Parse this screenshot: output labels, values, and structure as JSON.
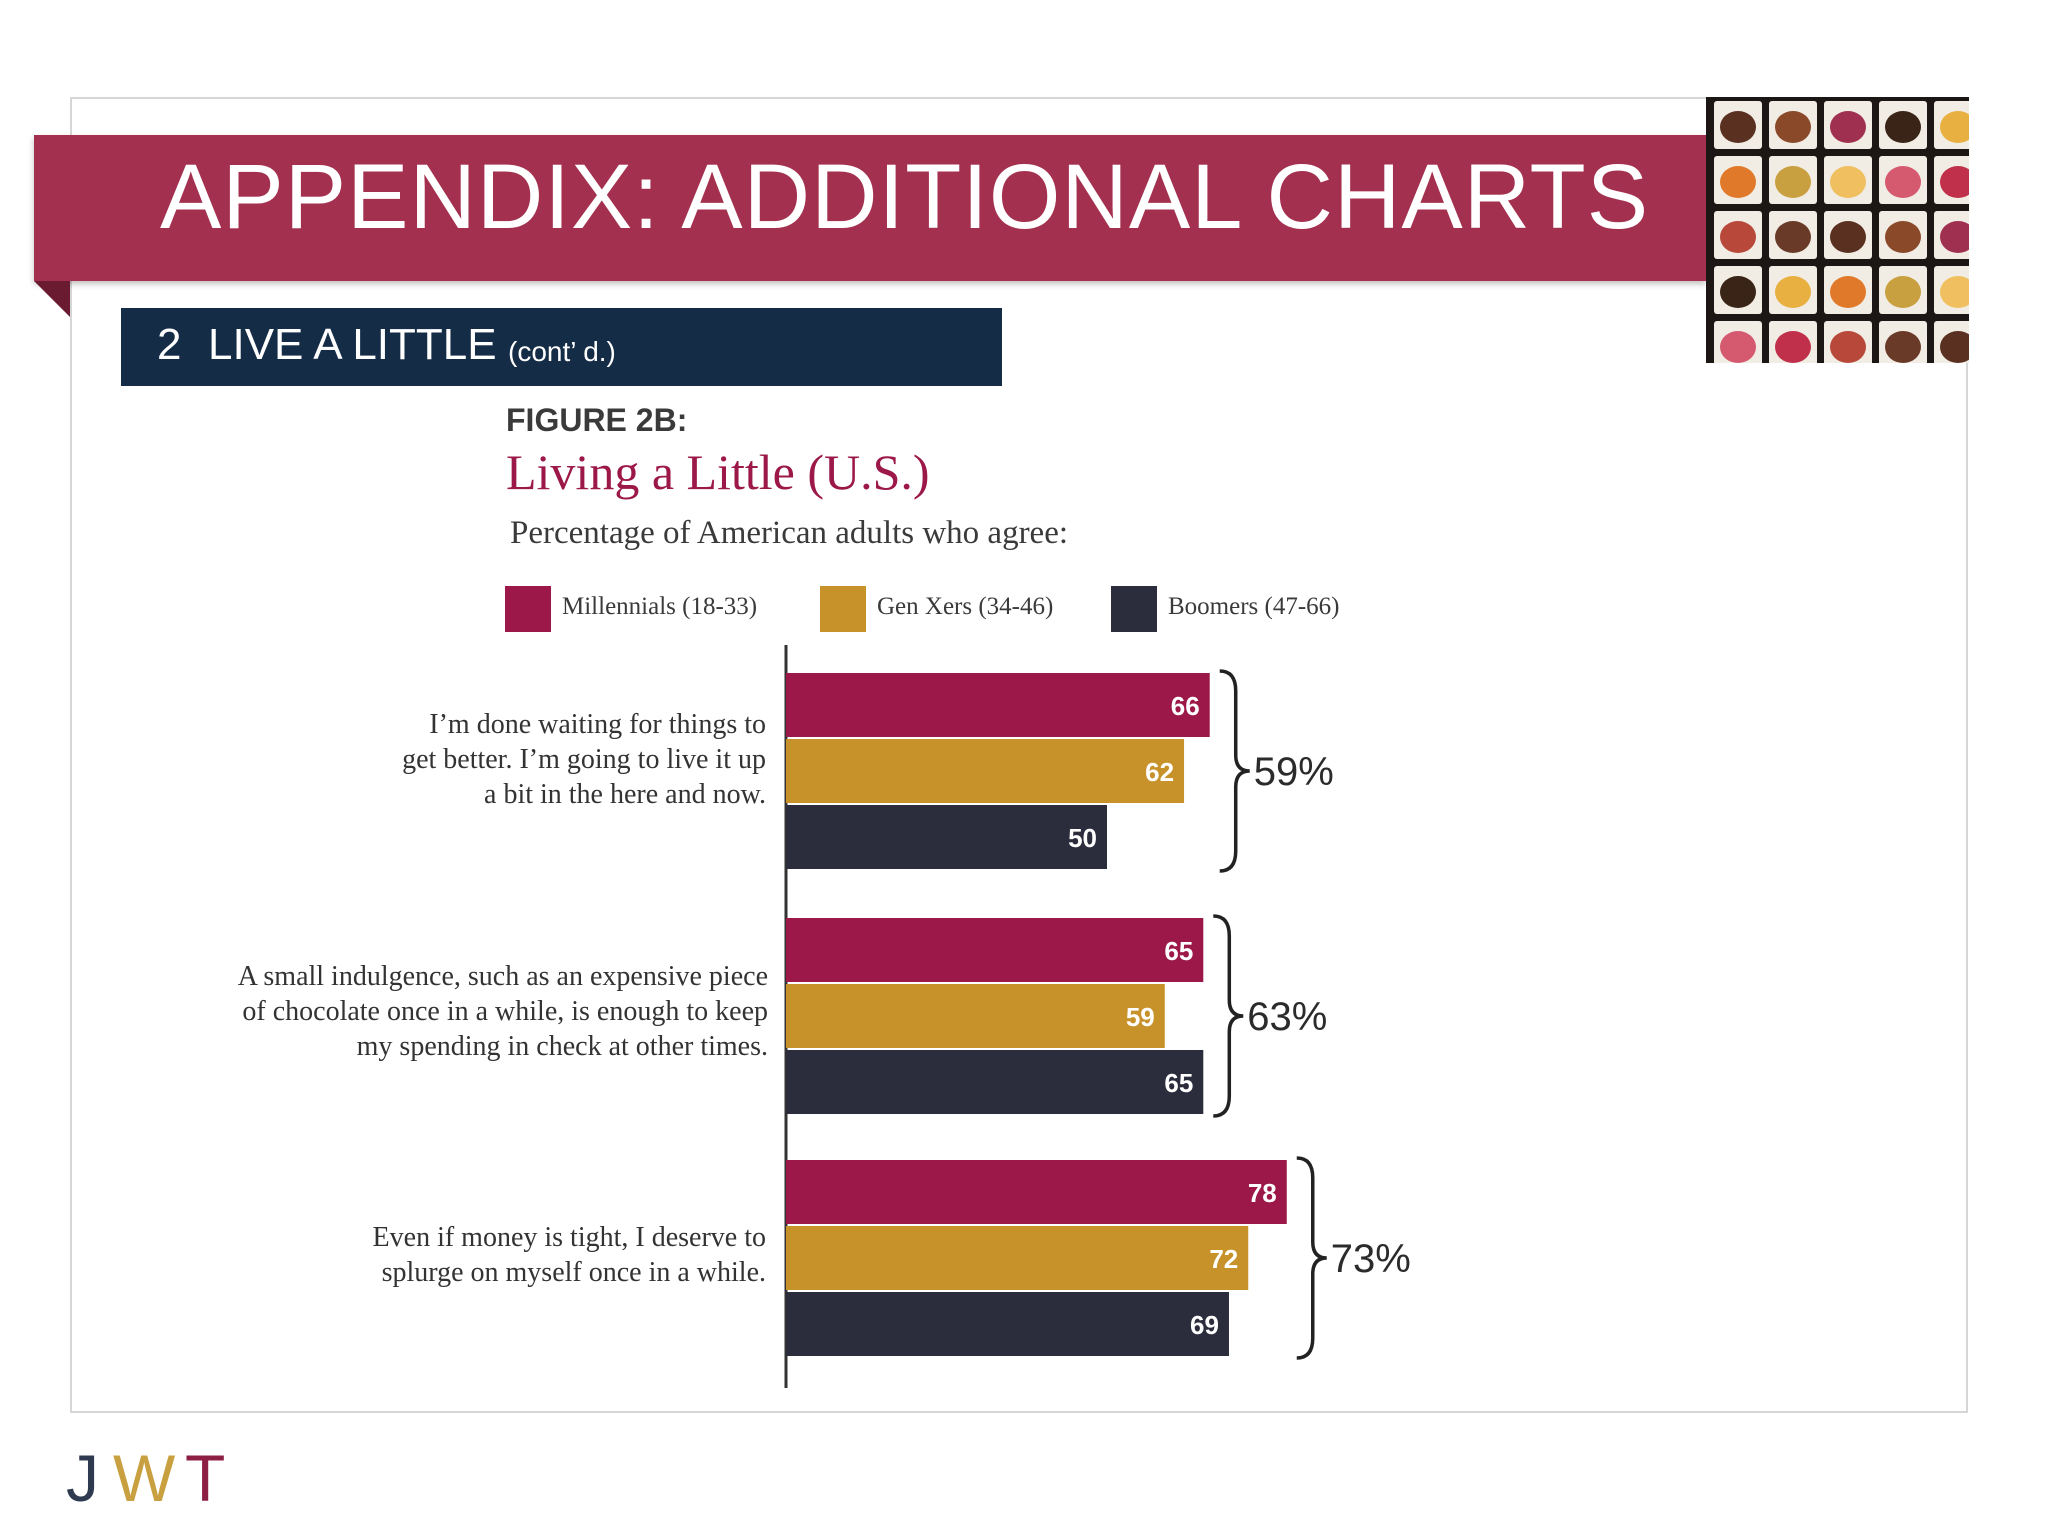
{
  "slide": {
    "title": "APPENDIX: ADDITIONAL CHARTS",
    "section_number": "2",
    "section_title": "LIVE A LITTLE",
    "section_subtitle": "(cont’ d.)"
  },
  "colors": {
    "banner": "#a4304f",
    "section_bar": "#152c47",
    "millennials": "#9c1848",
    "genx": "#c8922a",
    "boomers": "#2b2d3c"
  },
  "logo": {
    "j": "J",
    "w": "W",
    "t": "T"
  },
  "images": {
    "chocolate_photo": "box of assorted chocolates photo"
  },
  "chart_data": {
    "type": "bar",
    "orientation": "horizontal",
    "figure_label": "FIGURE 2B:",
    "title": "Living a Little (U.S.)",
    "subtitle": "Percentage of American adults who agree:",
    "legend_position": "top",
    "categories": [
      [
        "I’m done waiting for things to",
        "get better. I’m going to live it up",
        "a bit in the here and now."
      ],
      [
        "A small indulgence, such as an expensive piece",
        "of chocolate once in a while, is enough to keep",
        "my spending in check at other times."
      ],
      [
        "Even if money is tight, I deserve to",
        "splurge on myself once in a while."
      ]
    ],
    "series": [
      {
        "name": "Millennials (18-33)",
        "values": [
          66,
          65,
          78
        ]
      },
      {
        "name": "Gen Xers (34-46)",
        "values": [
          62,
          59,
          72
        ]
      },
      {
        "name": "Boomers (47-66)",
        "values": [
          50,
          65,
          69
        ]
      }
    ],
    "totals": [
      "59%",
      "63%",
      "73%"
    ],
    "xlim": [
      0,
      100
    ],
    "grid": false
  }
}
